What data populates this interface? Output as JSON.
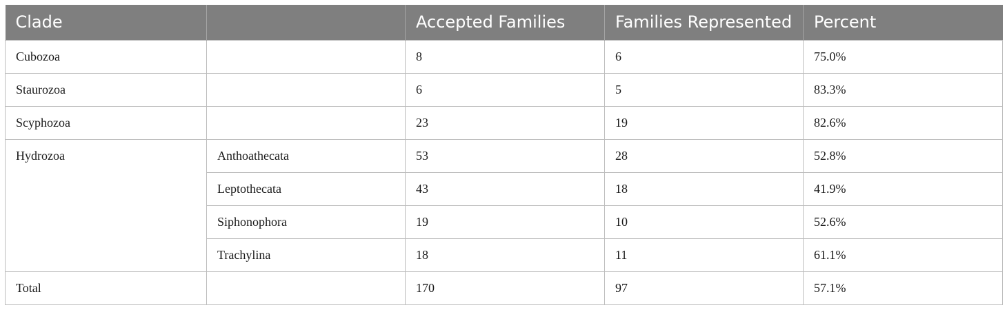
{
  "table": {
    "headers": [
      "Clade",
      "",
      "Accepted Families",
      "Families Represented",
      "Percent"
    ],
    "rows": {
      "cubozoa": {
        "clade": "Cubozoa",
        "sub": "",
        "accepted": "8",
        "represented": "6",
        "percent": "75.0%"
      },
      "staurozoa": {
        "clade": "Staurozoa",
        "sub": "",
        "accepted": "6",
        "represented": "5",
        "percent": "83.3%"
      },
      "scyphozoa": {
        "clade": "Scyphozoa",
        "sub": "",
        "accepted": "23",
        "represented": "19",
        "percent": "82.6%"
      },
      "hydrozoa": {
        "clade": "Hydrozoa",
        "subrows": [
          {
            "sub": "Anthoathecata",
            "accepted": "53",
            "represented": "28",
            "percent": "52.8%"
          },
          {
            "sub": "Leptothecata",
            "accepted": "43",
            "represented": "18",
            "percent": "41.9%"
          },
          {
            "sub": "Siphonophora",
            "accepted": "19",
            "represented": "10",
            "percent": "52.6%"
          },
          {
            "sub": "Trachylina",
            "accepted": "18",
            "represented": "11",
            "percent": "61.1%"
          }
        ]
      },
      "total": {
        "clade": "Total",
        "sub": "",
        "accepted": "170",
        "represented": "97",
        "percent": "57.1%"
      }
    }
  }
}
